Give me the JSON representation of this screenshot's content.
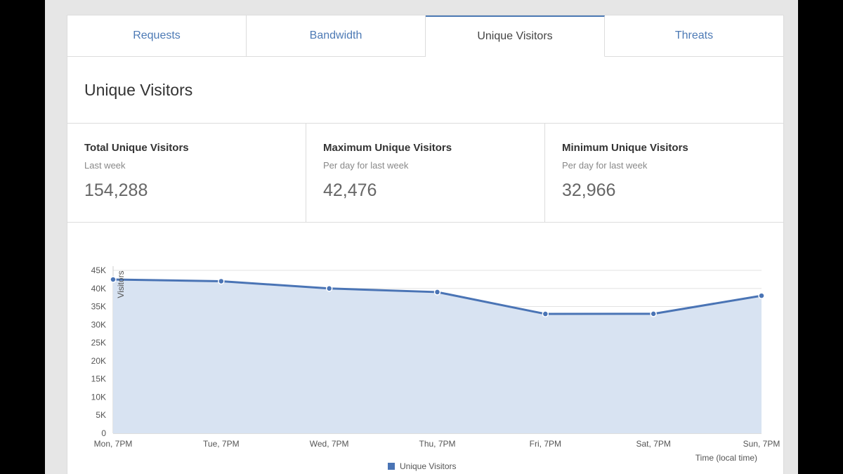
{
  "tabs": [
    {
      "label": "Requests",
      "active": false
    },
    {
      "label": "Bandwidth",
      "active": false
    },
    {
      "label": "Unique Visitors",
      "active": true
    },
    {
      "label": "Threats",
      "active": false
    }
  ],
  "panel": {
    "title": "Unique Visitors"
  },
  "stats": [
    {
      "title": "Total Unique Visitors",
      "subtitle": "Last week",
      "value": "154,288"
    },
    {
      "title": "Maximum Unique Visitors",
      "subtitle": "Per day for last week",
      "value": "42,476"
    },
    {
      "title": "Minimum Unique Visitors",
      "subtitle": "Per day for last week",
      "value": "32,966"
    }
  ],
  "colors": {
    "accent": "#4d7ab5",
    "area_fill": "#d8e3f2",
    "line": "#4a74b5"
  },
  "chart_data": {
    "type": "area",
    "categories": [
      "Mon, 7PM",
      "Tue, 7PM",
      "Wed, 7PM",
      "Thu, 7PM",
      "Fri, 7PM",
      "Sat, 7PM",
      "Sun, 7PM"
    ],
    "series": [
      {
        "name": "Unique Visitors",
        "values": [
          42476,
          42000,
          40000,
          39000,
          32966,
          33000,
          38000
        ]
      }
    ],
    "yticks": [
      "0",
      "5K",
      "10K",
      "15K",
      "20K",
      "25K",
      "30K",
      "35K",
      "40K",
      "45K"
    ],
    "ylim": [
      0,
      45000
    ],
    "ylabel": "Visitors",
    "xlabel": "Time (local time)",
    "legend_position": "bottom-center",
    "grid": true
  }
}
